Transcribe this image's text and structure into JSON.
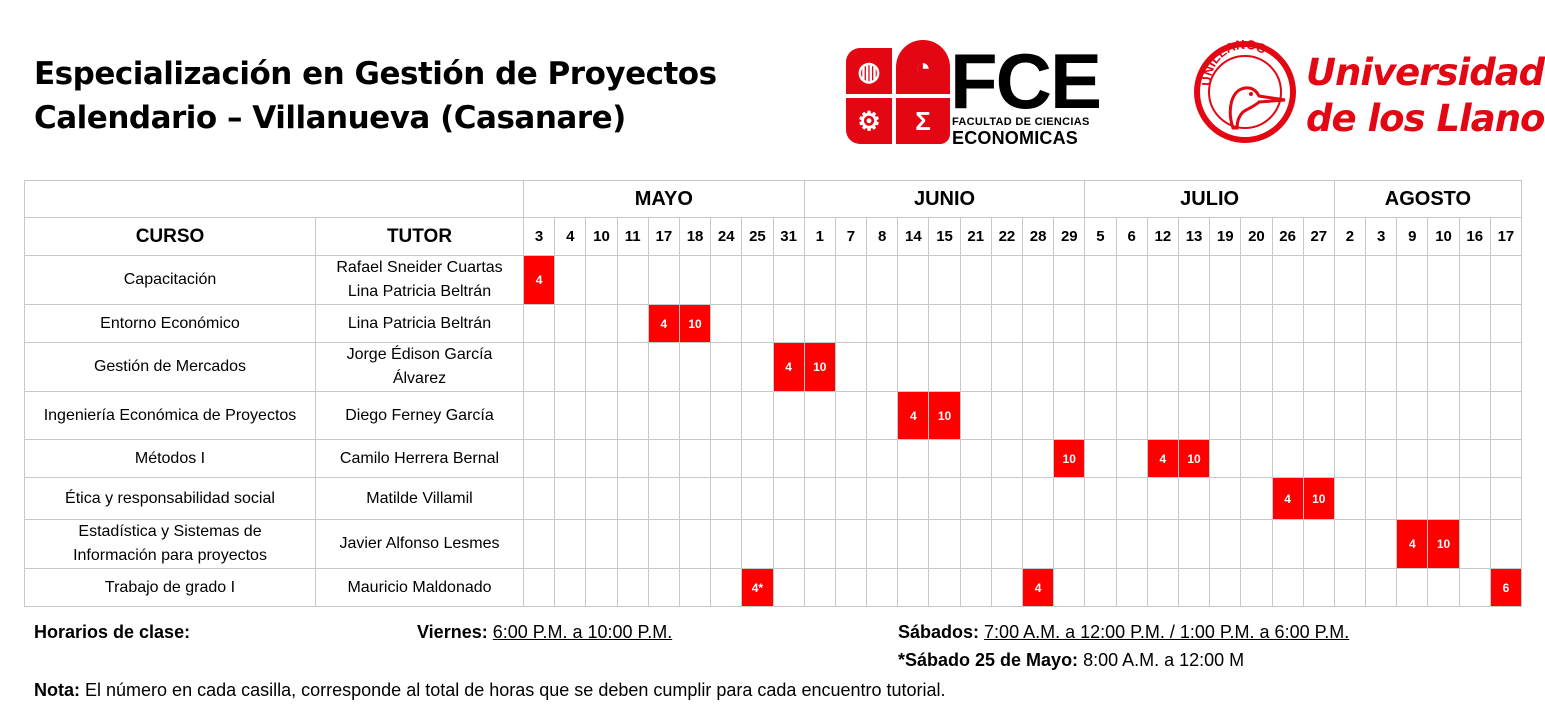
{
  "header": {
    "title_line1": "Especialización en Gestión de Proyectos",
    "title_line2": "Calendario – Villanueva (Casanare)"
  },
  "logos": {
    "fce_big": "FCE",
    "fce_sub1": "FACULTAD DE CIENCIAS",
    "fce_sub2": "ECONOMICAS",
    "fce_sigma": "Σ",
    "uni_line1": "Universidad",
    "uni_line2": "de los Llanos",
    "uni_seal_text": "UNILLANOS",
    "brand_color": "#e30613"
  },
  "table": {
    "col_course": "CURSO",
    "col_tutor": "TUTOR",
    "months": [
      {
        "name": "MAYO",
        "days": [
          "3",
          "4",
          "10",
          "11",
          "17",
          "18",
          "24",
          "25",
          "31"
        ]
      },
      {
        "name": "JUNIO",
        "days": [
          "1",
          "7",
          "8",
          "14",
          "15",
          "21",
          "22",
          "28",
          "29"
        ]
      },
      {
        "name": "JULIO",
        "days": [
          "5",
          "6",
          "12",
          "13",
          "19",
          "20",
          "26",
          "27"
        ]
      },
      {
        "name": "AGOSTO",
        "days": [
          "2",
          "3",
          "9",
          "10",
          "16",
          "17"
        ]
      }
    ],
    "highlight_color": "#ff0000",
    "rows": [
      {
        "course": "Capacitación",
        "tutor": "Rafael Sneider Cuartas Lina Patricia Beltrán",
        "tutor_lines": [
          "Rafael Sneider Cuartas",
          "Lina Patricia Beltrán"
        ],
        "cells": {
          "0": "4"
        }
      },
      {
        "course": "Entorno Económico",
        "tutor": "Lina Patricia Beltrán",
        "tutor_lines": [
          "Lina Patricia Beltrán"
        ],
        "cells": {
          "4": "4",
          "5": "10"
        }
      },
      {
        "course": "Gestión de Mercados",
        "tutor": "Jorge Édison García Álvarez",
        "tutor_lines": [
          "Jorge Édison García",
          "Álvarez"
        ],
        "cells": {
          "8": "4",
          "9": "10"
        }
      },
      {
        "course": "Ingeniería Económica de Proyectos",
        "tutor": "Diego Ferney García",
        "tutor_lines": [
          "Diego Ferney García"
        ],
        "cells": {
          "12": "4",
          "13": "10"
        }
      },
      {
        "course": "Métodos I",
        "tutor": "Camilo Herrera Bernal",
        "tutor_lines": [
          "Camilo Herrera Bernal"
        ],
        "cells": {
          "17": "10",
          "20": "4",
          "21": "10"
        }
      },
      {
        "course": "Ética y responsabilidad social",
        "tutor": "Matilde Villamil",
        "tutor_lines": [
          "Matilde Villamil"
        ],
        "cells": {
          "24": "4",
          "25": "10"
        }
      },
      {
        "course": "Estadística y Sistemas de Información para proyectos",
        "course_lines": [
          "Estadística y Sistemas de",
          "Información para proyectos"
        ],
        "tutor": "Javier Alfonso Lesmes",
        "tutor_lines": [
          "Javier Alfonso Lesmes"
        ],
        "cells": {
          "28": "4",
          "29": "10"
        }
      },
      {
        "course": "Trabajo de grado I",
        "tutor": "Mauricio Maldonado",
        "tutor_lines": [
          "Mauricio Maldonado"
        ],
        "cells": {
          "7": "4*",
          "16": "4",
          "31": "6"
        }
      }
    ]
  },
  "footer": {
    "horarios_label": "Horarios de clase:",
    "viernes_label": "Viernes:",
    "viernes_time": "6:00 P.M. a 10:00 P.M.",
    "sabados_label": "Sábados:",
    "sabados_time": "7:00 A.M. a 12:00 P.M. / 1:00 P.M. a 6:00 P.M.",
    "sabado25_label": "*Sábado 25 de Mayo:",
    "sabado25_time": "8:00 A.M. a 12:00 M",
    "nota_label": "Nota:",
    "nota_text": "El número en cada casilla, corresponde al total de horas que se deben cumplir para cada encuentro tutorial."
  }
}
